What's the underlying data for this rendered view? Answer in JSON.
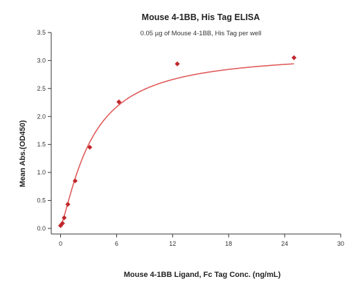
{
  "chart_data": {
    "type": "scatter",
    "title": "Mouse 4-1BB, His Tag ELISA",
    "subtitle": "0.05 µg of Mouse 4-1BB, His Tag per well",
    "xlabel": "Mouse 4-1BB Ligand, Fc Tag Conc. (ng/mL)",
    "ylabel": "Mean Abs.(OD450)",
    "xlim": [
      -1,
      30
    ],
    "ylim": [
      -0.1,
      3.5
    ],
    "xticks": [
      0,
      6,
      12,
      18,
      24,
      30
    ],
    "yticks": [
      0.0,
      0.5,
      1.0,
      1.5,
      2.0,
      2.5,
      3.0,
      3.5
    ],
    "ytick_labels": [
      "0.0",
      "0.5",
      "1.0",
      "1.5",
      "2.0",
      "2.5",
      "3.0",
      "3.5"
    ],
    "grid": false,
    "colors": {
      "points": "#c0282d",
      "curve": "#e05a5a",
      "axis": "#333333"
    },
    "series": [
      {
        "x": [
          0.0,
          0.2,
          0.39,
          0.78,
          1.56,
          3.13,
          6.25,
          12.5,
          25.0
        ],
        "y": [
          0.05,
          0.09,
          0.19,
          0.43,
          0.85,
          1.45,
          2.26,
          2.94,
          3.05
        ]
      }
    ],
    "fit_curve": {
      "type": "4PL",
      "bottom": 0.04,
      "top": 3.15,
      "ec50": 3.3,
      "hill": 1.3,
      "x_range": [
        0.0,
        25.0
      ]
    }
  }
}
